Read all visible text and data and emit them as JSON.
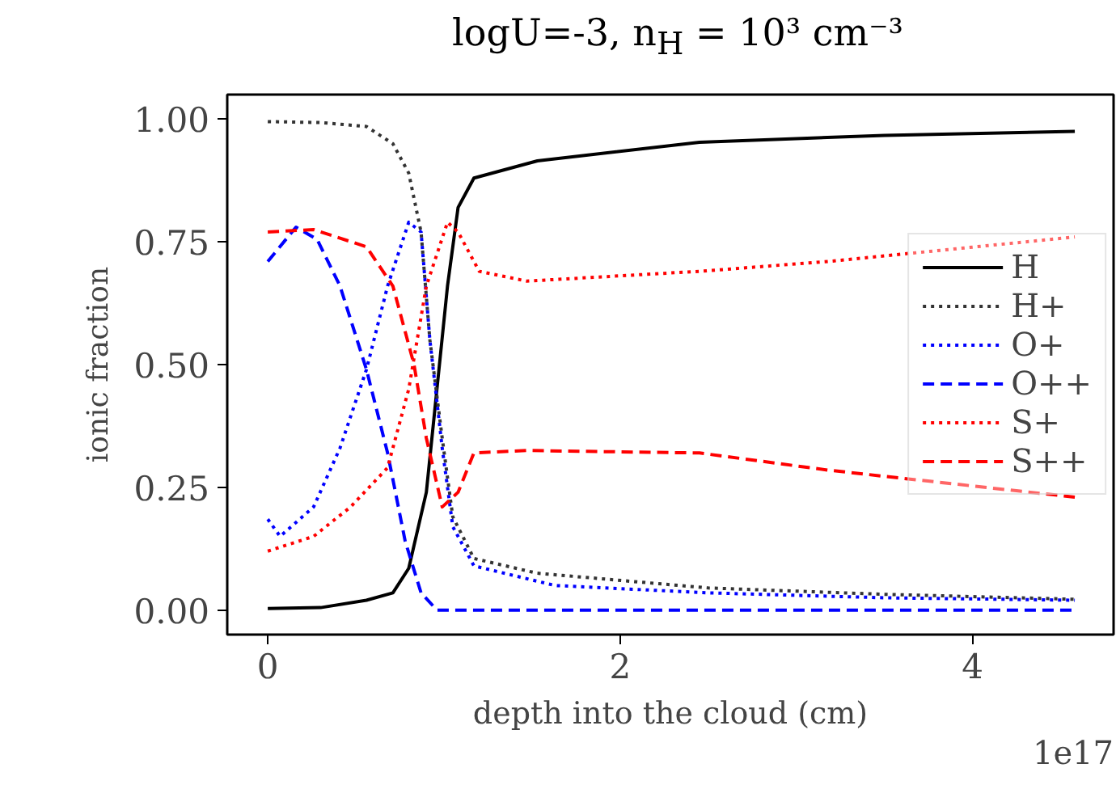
{
  "chart_data": {
    "type": "line",
    "title": "logU=-3, n$_{H}$ = 10³ cm⁻³",
    "xlabel": "depth into the cloud (cm)",
    "ylabel": "ionic fraction",
    "annotations": [
      "1e17"
    ],
    "xlim": [
      -0.23,
      4.8
    ],
    "ylim": [
      -0.05,
      1.05
    ],
    "xticks": [
      0,
      2,
      4
    ],
    "yticks": [
      {
        "value": 0,
        "label": "0.00"
      },
      {
        "value": 0.25,
        "label": "0.25"
      },
      {
        "value": 0.5,
        "label": "0.50"
      },
      {
        "value": 0.75,
        "label": "0.75"
      },
      {
        "value": 1,
        "label": "1.00"
      }
    ],
    "grid": false,
    "legend": "right",
    "marker": "none",
    "series": [
      {
        "name": "H",
        "color": "#000000",
        "line_style": "solid",
        "x": [
          0,
          0.3,
          0.56,
          0.71,
          0.8,
          0.9,
          0.96,
          1.02,
          1.08,
          1.17,
          1.53,
          2.45,
          3.5,
          4.58
        ],
        "values": [
          0.003,
          0.005,
          0.02,
          0.035,
          0.085,
          0.24,
          0.45,
          0.66,
          0.82,
          0.88,
          0.915,
          0.953,
          0.967,
          0.975
        ]
      },
      {
        "name": "H+",
        "color": "#333333",
        "line_style": "dotted",
        "x": [
          0,
          0.3,
          0.56,
          0.71,
          0.8,
          0.87,
          0.92,
          0.99,
          1.05,
          1.17,
          1.53,
          2.5,
          3.5,
          4.58
        ],
        "values": [
          0.995,
          0.993,
          0.985,
          0.95,
          0.89,
          0.77,
          0.55,
          0.35,
          0.19,
          0.105,
          0.075,
          0.045,
          0.032,
          0.022
        ]
      },
      {
        "name": "O+",
        "color": "#0000ff",
        "line_style": "dotted",
        "x": [
          0,
          0.07,
          0.26,
          0.41,
          0.56,
          0.68,
          0.8,
          0.87,
          0.92,
          0.99,
          1.05,
          1.17,
          1.63,
          2.5,
          3.5,
          4.58
        ],
        "values": [
          0.185,
          0.15,
          0.21,
          0.33,
          0.49,
          0.66,
          0.79,
          0.77,
          0.55,
          0.33,
          0.17,
          0.09,
          0.05,
          0.035,
          0.025,
          0.02
        ]
      },
      {
        "name": "O++",
        "color": "#0000ff",
        "line_style": "dashed",
        "x": [
          0,
          0.16,
          0.28,
          0.41,
          0.56,
          0.68,
          0.78,
          0.87,
          0.96,
          1.5,
          2.5,
          3.5,
          4.58
        ],
        "values": [
          0.71,
          0.78,
          0.755,
          0.66,
          0.49,
          0.32,
          0.14,
          0.035,
          0.0,
          0.0,
          0.0,
          0.0,
          0.0
        ]
      },
      {
        "name": "S+",
        "color": "#ff0000",
        "line_style": "dotted",
        "x": [
          0,
          0.26,
          0.47,
          0.68,
          0.8,
          0.9,
          1.02,
          1.08,
          1.2,
          1.47,
          2.45,
          3.18,
          4.58
        ],
        "values": [
          0.12,
          0.15,
          0.21,
          0.29,
          0.45,
          0.66,
          0.79,
          0.77,
          0.69,
          0.67,
          0.69,
          0.71,
          0.76
        ]
      },
      {
        "name": "S++",
        "color": "#ff0000",
        "line_style": "dashed",
        "x": [
          0,
          0.26,
          0.56,
          0.71,
          0.83,
          0.9,
          0.99,
          1.08,
          1.17,
          1.47,
          2.45,
          3.18,
          4.58
        ],
        "values": [
          0.77,
          0.775,
          0.74,
          0.66,
          0.5,
          0.35,
          0.21,
          0.24,
          0.32,
          0.325,
          0.32,
          0.285,
          0.23
        ]
      }
    ]
  }
}
